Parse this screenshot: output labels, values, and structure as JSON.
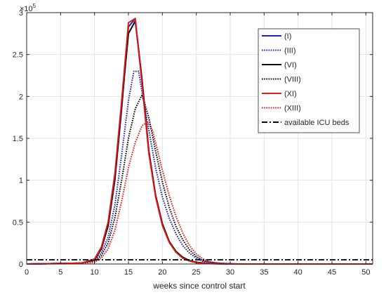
{
  "chart_data": {
    "type": "line",
    "xlabel": "weeks since control start",
    "ylabel": "",
    "exponent_label": "×10",
    "exponent_power": "5",
    "xlim": [
      0,
      51
    ],
    "ylim": [
      0,
      3
    ],
    "xticks": [
      "0",
      "5",
      "10",
      "15",
      "20",
      "25",
      "30",
      "35",
      "40",
      "45",
      "50"
    ],
    "yticks": [
      "0",
      "0.5",
      "1",
      "1.5",
      "2",
      "2.5",
      "3"
    ],
    "grid": true,
    "legend_position": "top-right",
    "series": [
      {
        "name": "(I)",
        "color": "#1f1fbf",
        "style": "solid",
        "points": [
          [
            0,
            0
          ],
          [
            8,
            0.01
          ],
          [
            10,
            0.05
          ],
          [
            11,
            0.18
          ],
          [
            12,
            0.45
          ],
          [
            13,
            1.0
          ],
          [
            14,
            1.85
          ],
          [
            15,
            2.83
          ],
          [
            16,
            2.93
          ],
          [
            17,
            2.2
          ],
          [
            18,
            1.35
          ],
          [
            19,
            0.82
          ],
          [
            20,
            0.48
          ],
          [
            21,
            0.27
          ],
          [
            22,
            0.15
          ],
          [
            23,
            0.08
          ],
          [
            24,
            0.04
          ],
          [
            25,
            0.02
          ],
          [
            27,
            0.005
          ],
          [
            30,
            0
          ],
          [
            51,
            0
          ]
        ]
      },
      {
        "name": "(III)",
        "color": "#1f1fbf",
        "style": "dotted",
        "points": [
          [
            0,
            0
          ],
          [
            8,
            0.01
          ],
          [
            10,
            0.04
          ],
          [
            11,
            0.13
          ],
          [
            12,
            0.32
          ],
          [
            13,
            0.7
          ],
          [
            14,
            1.3
          ],
          [
            15,
            1.95
          ],
          [
            15.8,
            2.3
          ],
          [
            16.5,
            2.3
          ],
          [
            17,
            2.05
          ],
          [
            18,
            1.6
          ],
          [
            19,
            1.15
          ],
          [
            20,
            0.8
          ],
          [
            21,
            0.55
          ],
          [
            22,
            0.36
          ],
          [
            23,
            0.22
          ],
          [
            24,
            0.13
          ],
          [
            25,
            0.07
          ],
          [
            26,
            0.03
          ],
          [
            28,
            0.01
          ],
          [
            31,
            0
          ],
          [
            51,
            0
          ]
        ]
      },
      {
        "name": "(VI)",
        "color": "#000000",
        "style": "solid",
        "points": [
          [
            0,
            0
          ],
          [
            8,
            0.01
          ],
          [
            10,
            0.05
          ],
          [
            11,
            0.18
          ],
          [
            12,
            0.46
          ],
          [
            13,
            1.02
          ],
          [
            14,
            1.9
          ],
          [
            15,
            2.75
          ],
          [
            16,
            2.9
          ],
          [
            17,
            2.2
          ],
          [
            18,
            1.35
          ],
          [
            19,
            0.82
          ],
          [
            20,
            0.48
          ],
          [
            21,
            0.27
          ],
          [
            22,
            0.15
          ],
          [
            23,
            0.08
          ],
          [
            24,
            0.04
          ],
          [
            25,
            0.02
          ],
          [
            27,
            0.005
          ],
          [
            30,
            0
          ],
          [
            51,
            0
          ]
        ]
      },
      {
        "name": "(VIII)",
        "color": "#000000",
        "style": "dotted",
        "points": [
          [
            0,
            0
          ],
          [
            8,
            0.01
          ],
          [
            10,
            0.03
          ],
          [
            11,
            0.1
          ],
          [
            12,
            0.25
          ],
          [
            13,
            0.55
          ],
          [
            14,
            1.0
          ],
          [
            15,
            1.5
          ],
          [
            16,
            1.85
          ],
          [
            17,
            2.02
          ],
          [
            18,
            1.75
          ],
          [
            19,
            1.35
          ],
          [
            20,
            0.98
          ],
          [
            21,
            0.68
          ],
          [
            22,
            0.45
          ],
          [
            23,
            0.29
          ],
          [
            24,
            0.17
          ],
          [
            25,
            0.09
          ],
          [
            26,
            0.04
          ],
          [
            28,
            0.01
          ],
          [
            31,
            0
          ],
          [
            51,
            0
          ]
        ]
      },
      {
        "name": "(XI)",
        "color": "#e01b1b",
        "style": "solid",
        "points": [
          [
            0,
            0
          ],
          [
            8,
            0.01
          ],
          [
            10,
            0.06
          ],
          [
            11,
            0.2
          ],
          [
            12,
            0.5
          ],
          [
            13,
            1.08
          ],
          [
            14,
            1.95
          ],
          [
            15,
            2.88
          ],
          [
            16,
            2.93
          ],
          [
            17,
            2.15
          ],
          [
            18,
            1.32
          ],
          [
            19,
            0.8
          ],
          [
            20,
            0.46
          ],
          [
            21,
            0.26
          ],
          [
            22,
            0.14
          ],
          [
            23,
            0.07
          ],
          [
            24,
            0.035
          ],
          [
            25,
            0.015
          ],
          [
            27,
            0.004
          ],
          [
            30,
            0
          ],
          [
            51,
            0
          ]
        ]
      },
      {
        "name": "(XIII)",
        "color": "#e01b1b",
        "style": "dotted",
        "points": [
          [
            0,
            0
          ],
          [
            8,
            0.005
          ],
          [
            10,
            0.02
          ],
          [
            11,
            0.07
          ],
          [
            12,
            0.18
          ],
          [
            13,
            0.4
          ],
          [
            14,
            0.75
          ],
          [
            15,
            1.15
          ],
          [
            16,
            1.45
          ],
          [
            17,
            1.65
          ],
          [
            17.8,
            1.7
          ],
          [
            18.5,
            1.6
          ],
          [
            19,
            1.45
          ],
          [
            20,
            1.12
          ],
          [
            21,
            0.82
          ],
          [
            22,
            0.57
          ],
          [
            23,
            0.37
          ],
          [
            24,
            0.22
          ],
          [
            25,
            0.12
          ],
          [
            26,
            0.06
          ],
          [
            27,
            0.025
          ],
          [
            29,
            0.005
          ],
          [
            32,
            0
          ],
          [
            51,
            0
          ]
        ]
      },
      {
        "name": "available ICU beds",
        "color": "#000000",
        "style": "dashdot",
        "points": [
          [
            0,
            0.05
          ],
          [
            51,
            0.05
          ]
        ]
      }
    ]
  }
}
